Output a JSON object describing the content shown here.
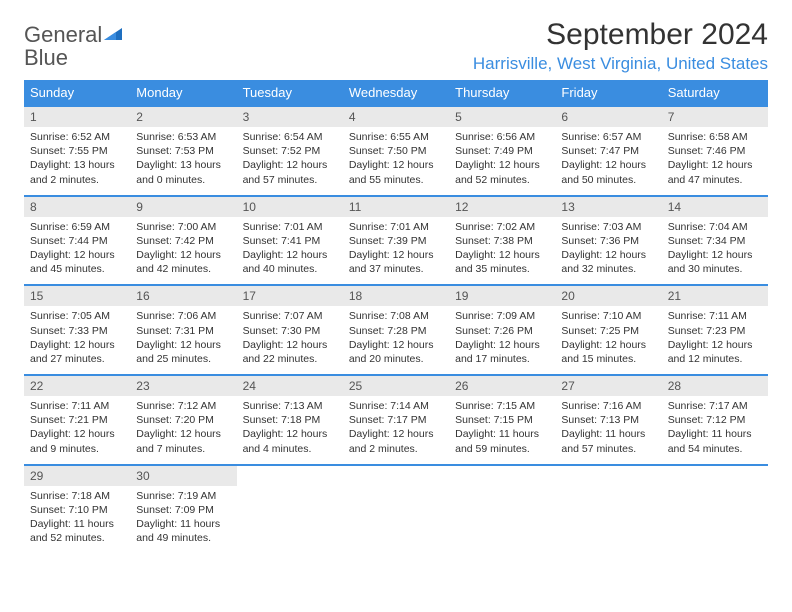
{
  "logo": {
    "text1": "General",
    "text2": "Blue"
  },
  "title": "September 2024",
  "location": "Harrisville, West Virginia, United States",
  "colors": {
    "header_bg": "#3a8de0",
    "header_fg": "#ffffff",
    "daynum_bg": "#e9e9e9",
    "border": "#3a8de0",
    "text": "#333333",
    "muted": "#555555"
  },
  "weekdays": [
    "Sunday",
    "Monday",
    "Tuesday",
    "Wednesday",
    "Thursday",
    "Friday",
    "Saturday"
  ],
  "weeks": [
    [
      {
        "n": "1",
        "sr": "6:52 AM",
        "ss": "7:55 PM",
        "dl": "13 hours and 2 minutes."
      },
      {
        "n": "2",
        "sr": "6:53 AM",
        "ss": "7:53 PM",
        "dl": "13 hours and 0 minutes."
      },
      {
        "n": "3",
        "sr": "6:54 AM",
        "ss": "7:52 PM",
        "dl": "12 hours and 57 minutes."
      },
      {
        "n": "4",
        "sr": "6:55 AM",
        "ss": "7:50 PM",
        "dl": "12 hours and 55 minutes."
      },
      {
        "n": "5",
        "sr": "6:56 AM",
        "ss": "7:49 PM",
        "dl": "12 hours and 52 minutes."
      },
      {
        "n": "6",
        "sr": "6:57 AM",
        "ss": "7:47 PM",
        "dl": "12 hours and 50 minutes."
      },
      {
        "n": "7",
        "sr": "6:58 AM",
        "ss": "7:46 PM",
        "dl": "12 hours and 47 minutes."
      }
    ],
    [
      {
        "n": "8",
        "sr": "6:59 AM",
        "ss": "7:44 PM",
        "dl": "12 hours and 45 minutes."
      },
      {
        "n": "9",
        "sr": "7:00 AM",
        "ss": "7:42 PM",
        "dl": "12 hours and 42 minutes."
      },
      {
        "n": "10",
        "sr": "7:01 AM",
        "ss": "7:41 PM",
        "dl": "12 hours and 40 minutes."
      },
      {
        "n": "11",
        "sr": "7:01 AM",
        "ss": "7:39 PM",
        "dl": "12 hours and 37 minutes."
      },
      {
        "n": "12",
        "sr": "7:02 AM",
        "ss": "7:38 PM",
        "dl": "12 hours and 35 minutes."
      },
      {
        "n": "13",
        "sr": "7:03 AM",
        "ss": "7:36 PM",
        "dl": "12 hours and 32 minutes."
      },
      {
        "n": "14",
        "sr": "7:04 AM",
        "ss": "7:34 PM",
        "dl": "12 hours and 30 minutes."
      }
    ],
    [
      {
        "n": "15",
        "sr": "7:05 AM",
        "ss": "7:33 PM",
        "dl": "12 hours and 27 minutes."
      },
      {
        "n": "16",
        "sr": "7:06 AM",
        "ss": "7:31 PM",
        "dl": "12 hours and 25 minutes."
      },
      {
        "n": "17",
        "sr": "7:07 AM",
        "ss": "7:30 PM",
        "dl": "12 hours and 22 minutes."
      },
      {
        "n": "18",
        "sr": "7:08 AM",
        "ss": "7:28 PM",
        "dl": "12 hours and 20 minutes."
      },
      {
        "n": "19",
        "sr": "7:09 AM",
        "ss": "7:26 PM",
        "dl": "12 hours and 17 minutes."
      },
      {
        "n": "20",
        "sr": "7:10 AM",
        "ss": "7:25 PM",
        "dl": "12 hours and 15 minutes."
      },
      {
        "n": "21",
        "sr": "7:11 AM",
        "ss": "7:23 PM",
        "dl": "12 hours and 12 minutes."
      }
    ],
    [
      {
        "n": "22",
        "sr": "7:11 AM",
        "ss": "7:21 PM",
        "dl": "12 hours and 9 minutes."
      },
      {
        "n": "23",
        "sr": "7:12 AM",
        "ss": "7:20 PM",
        "dl": "12 hours and 7 minutes."
      },
      {
        "n": "24",
        "sr": "7:13 AM",
        "ss": "7:18 PM",
        "dl": "12 hours and 4 minutes."
      },
      {
        "n": "25",
        "sr": "7:14 AM",
        "ss": "7:17 PM",
        "dl": "12 hours and 2 minutes."
      },
      {
        "n": "26",
        "sr": "7:15 AM",
        "ss": "7:15 PM",
        "dl": "11 hours and 59 minutes."
      },
      {
        "n": "27",
        "sr": "7:16 AM",
        "ss": "7:13 PM",
        "dl": "11 hours and 57 minutes."
      },
      {
        "n": "28",
        "sr": "7:17 AM",
        "ss": "7:12 PM",
        "dl": "11 hours and 54 minutes."
      }
    ],
    [
      {
        "n": "29",
        "sr": "7:18 AM",
        "ss": "7:10 PM",
        "dl": "11 hours and 52 minutes."
      },
      {
        "n": "30",
        "sr": "7:19 AM",
        "ss": "7:09 PM",
        "dl": "11 hours and 49 minutes."
      },
      null,
      null,
      null,
      null,
      null
    ]
  ],
  "labels": {
    "sunrise": "Sunrise:",
    "sunset": "Sunset:",
    "daylight": "Daylight:"
  }
}
